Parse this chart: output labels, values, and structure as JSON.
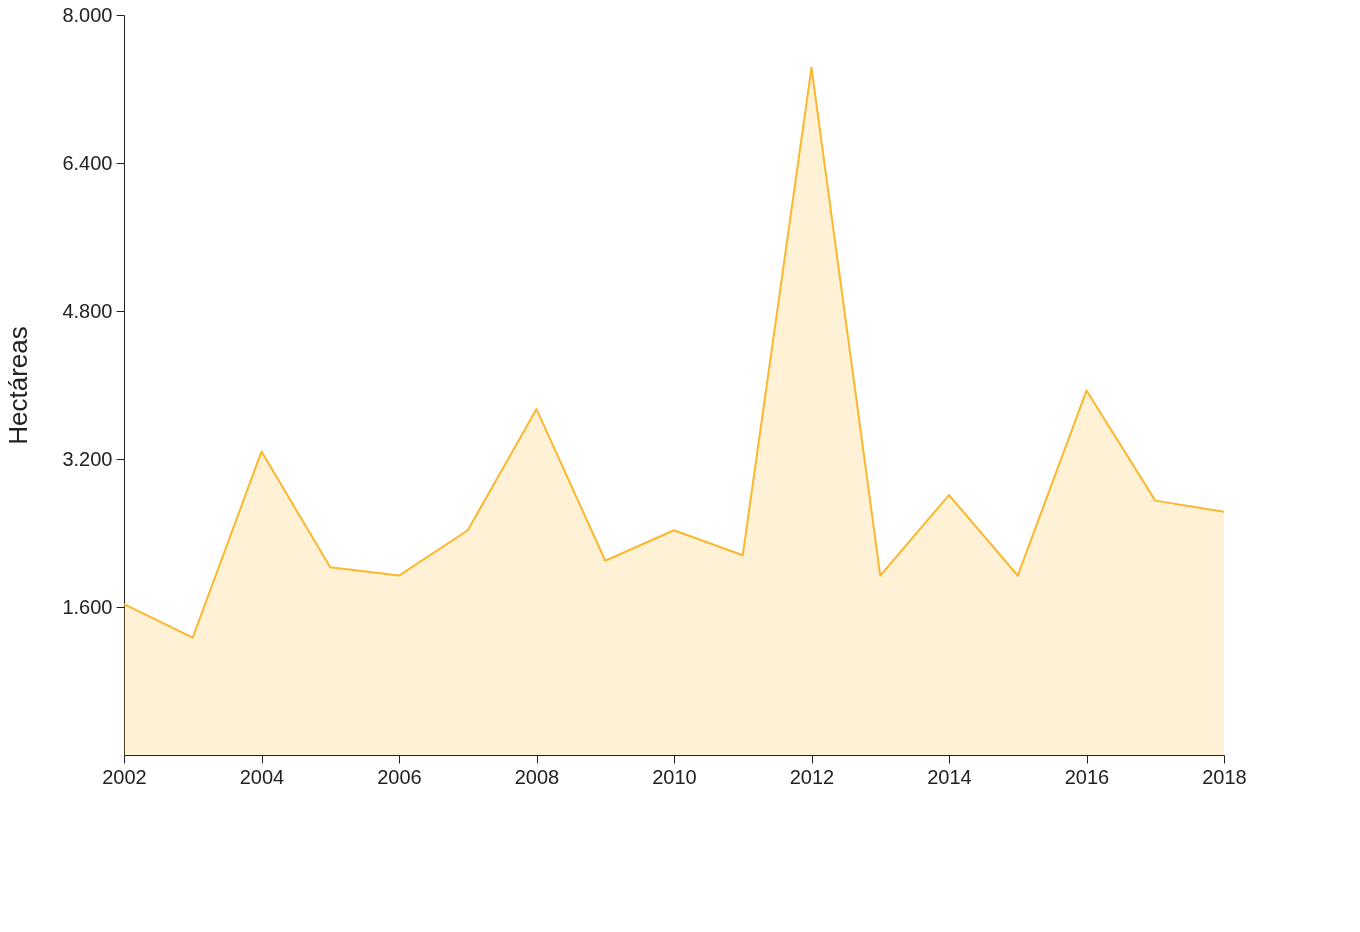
{
  "chart_data": {
    "type": "area",
    "ylabel": "Hectáreas",
    "x": [
      2002,
      2003,
      2004,
      2005,
      2006,
      2007,
      2008,
      2009,
      2010,
      2011,
      2012,
      2013,
      2014,
      2015,
      2016,
      2017,
      2018
    ],
    "series": [
      {
        "color": "#fbb72d",
        "values": [
          1630,
          1270,
          3280,
          2030,
          1940,
          2430,
          3740,
          2100,
          2430,
          2160,
          7430,
          1940,
          2810,
          1940,
          3940,
          2750,
          2630
        ]
      }
    ],
    "xlim": [
      2002,
      2018
    ],
    "xticks": [
      2002,
      2004,
      2006,
      2008,
      2010,
      2012,
      2014,
      2016,
      2018
    ],
    "ylim": [
      0,
      8000
    ],
    "yticks": [
      {
        "value": 1600,
        "label": "1.600"
      },
      {
        "value": 3200,
        "label": "3.200"
      },
      {
        "value": 4800,
        "label": "4.800"
      },
      {
        "value": 6400,
        "label": "6.400"
      },
      {
        "value": 8000,
        "label": "8.000"
      }
    ],
    "grid": false
  }
}
